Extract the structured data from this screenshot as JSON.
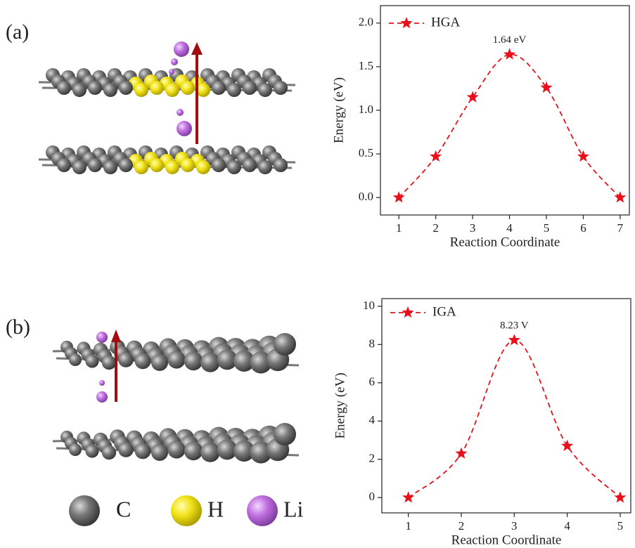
{
  "panel_labels": [
    "(a)",
    "(b)"
  ],
  "atom_legend": [
    "C",
    "H",
    "Li"
  ],
  "chart_data": [
    {
      "type": "line",
      "x": [
        1,
        2,
        3,
        4,
        5,
        6,
        7
      ],
      "series": [
        {
          "name": "HGA",
          "color": "#e8101a",
          "values": [
            0,
            0.47,
            1.15,
            1.64,
            1.26,
            0.47,
            0
          ]
        }
      ],
      "xlim": [
        0.5,
        7.25
      ],
      "ylim": [
        -0.2,
        2.2
      ],
      "xticks": [
        1,
        2,
        3,
        4,
        5,
        6,
        7
      ],
      "yticks": [
        {
          "value": 0,
          "label": "0.0"
        },
        {
          "value": 0.5,
          "label": "0.5"
        },
        {
          "value": 1,
          "label": "1.0"
        },
        {
          "value": 1.5,
          "label": "1.5"
        },
        {
          "value": 2,
          "label": "2.0"
        }
      ],
      "xlabel": "Reaction Coordinate",
      "ylabel": "Energy (eV)",
      "annotations": [
        "1.64 eV"
      ],
      "legend": "upper left"
    },
    {
      "type": "line",
      "x": [
        1,
        2,
        3,
        4,
        5
      ],
      "series": [
        {
          "name": "IGA",
          "color": "#e8101a",
          "values": [
            0,
            2.3,
            8.23,
            2.7,
            0
          ]
        }
      ],
      "xlim": [
        0.5,
        5.2
      ],
      "ylim": [
        -0.8,
        10.4
      ],
      "xticks": [
        1,
        2,
        3,
        4,
        5
      ],
      "yticks": [
        0,
        2,
        4,
        6,
        8,
        10
      ],
      "xlabel": "Reaction Coordinate",
      "ylabel": "Energy (eV)",
      "annotations": [
        "8.23 V"
      ],
      "legend": "upper left"
    }
  ]
}
